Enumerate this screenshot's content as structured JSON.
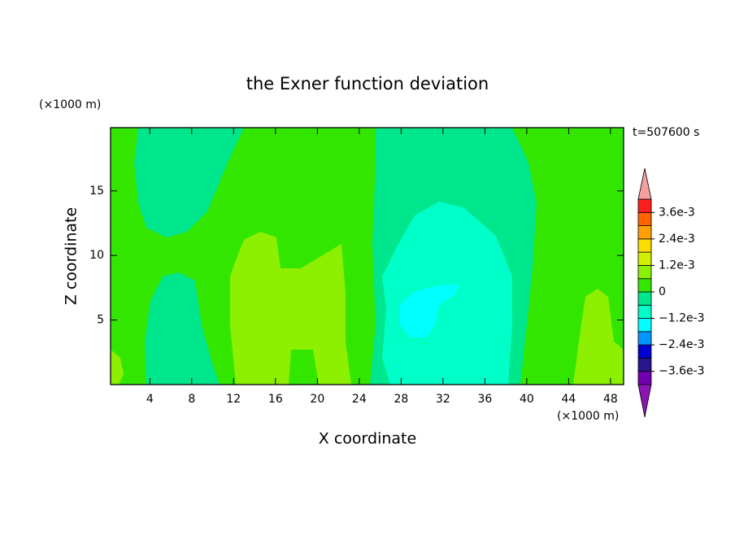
{
  "chart_data": {
    "type": "contour",
    "title": "the Exner function deviation",
    "xlabel": "X coordinate",
    "ylabel": "Z coordinate",
    "x_unit": "(×1000 m)",
    "y_unit": "(×1000 m)",
    "annotation": "t=507600 s",
    "xlim": [
      0.25,
      49.25
    ],
    "ylim": [
      0,
      19.9
    ],
    "xticks": [
      4,
      8,
      12,
      16,
      20,
      24,
      28,
      32,
      36,
      40,
      44,
      48
    ],
    "yticks": [
      5,
      10,
      15
    ],
    "levels": [
      -0.0042,
      -0.0036,
      -0.003,
      -0.0024,
      -0.0018,
      -0.0012,
      -0.0006,
      0,
      0.0006,
      0.0012,
      0.0018,
      0.0024,
      0.003,
      0.0036,
      0.0042
    ],
    "colors": [
      "#7000b0",
      "#28148c",
      "#0000d2",
      "#0096ff",
      "#00ffff",
      "#00ffc8",
      "#00e68c",
      "#33e600",
      "#8cf000",
      "#d2f000",
      "#ffdc00",
      "#ffa000",
      "#ff6400",
      "#ff1e1e"
    ],
    "under_color": "#8c14b4",
    "over_color": "#f5a0a0",
    "colorbar_ticks": [
      {
        "value": 0.0036,
        "label": "3.6e-3"
      },
      {
        "value": 0.0024,
        "label": "2.4e-3"
      },
      {
        "value": 0.0012,
        "label": "1.2e-3"
      },
      0,
      {
        "value": -0.0012,
        "label": "−1.2e-3"
      },
      {
        "value": -0.0024,
        "label": "−2.4e-3"
      },
      {
        "value": -0.0036,
        "label": "−3.6e-3"
      }
    ]
  }
}
